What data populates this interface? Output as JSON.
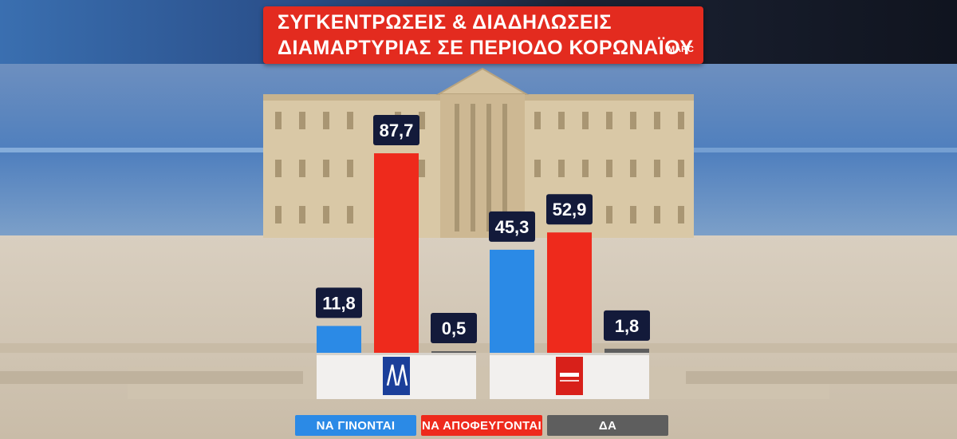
{
  "header": {
    "title_line1": "ΣΥΓΚΕΝΤΡΩΣΕΙΣ & ΔΙΑΔΗΛΩΣΕΙΣ",
    "title_line2": "ΔΙΑΜΑΡΤΥΡΙΑΣ ΣΕ ΠΕΡΙΟΔΟ ΚΟΡΩΝΑΪΟΥ",
    "source": "MARC"
  },
  "colors": {
    "blue": "#2b8ae6",
    "red": "#ee2a1c",
    "gray": "#5e5e5e",
    "label_bg": "#131a3a",
    "title_bg": "#e32b1f"
  },
  "chart_data": {
    "type": "bar",
    "categories": [
      "ΝΔ",
      "ΣΥΡΙΖΑ"
    ],
    "category_icons": [
      "nd-logo-icon",
      "syriza-logo-icon"
    ],
    "series": [
      {
        "name": "ΝΑ ΓΙΝΟΝΤΑΙ",
        "values": [
          11.8,
          45.3
        ],
        "labels": [
          "11,8",
          "45,3"
        ]
      },
      {
        "name": "ΝΑ ΑΠΟΦΕΥΓΟΝΤΑΙ",
        "values": [
          87.7,
          52.9
        ],
        "labels": [
          "87,7",
          "52,9"
        ]
      },
      {
        "name": "ΔΑ",
        "values": [
          0.5,
          1.8
        ],
        "labels": [
          "0,5",
          "1,8"
        ]
      }
    ],
    "ylim": [
      0,
      100
    ],
    "grid": false,
    "legend_position": "bottom"
  }
}
